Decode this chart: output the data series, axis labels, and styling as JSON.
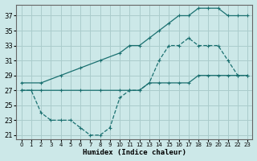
{
  "xlabel": "Humidex (Indice chaleur)",
  "background_color": "#cce8e8",
  "grid_color": "#aacccc",
  "line_color": "#1a7070",
  "xlim": [
    -0.5,
    23.5
  ],
  "ylim": [
    20.5,
    38.5
  ],
  "xticks": [
    0,
    1,
    2,
    3,
    4,
    5,
    6,
    7,
    8,
    9,
    10,
    11,
    12,
    13,
    14,
    15,
    16,
    17,
    18,
    19,
    20,
    21,
    22,
    23
  ],
  "yticks": [
    21,
    23,
    25,
    27,
    29,
    31,
    33,
    35,
    37
  ],
  "line1_x": [
    0,
    2,
    4,
    6,
    8,
    10,
    11,
    12,
    13,
    14,
    15,
    16,
    17,
    18,
    19,
    20,
    21,
    22,
    23
  ],
  "line1_y": [
    28,
    28,
    29,
    30,
    31,
    32,
    33,
    33,
    34,
    35,
    36,
    37,
    37,
    38,
    38,
    38,
    37,
    37,
    37
  ],
  "line2_x": [
    0,
    2,
    4,
    6,
    8,
    10,
    11,
    12,
    13,
    14,
    15,
    16,
    17,
    18,
    19,
    20,
    21,
    22,
    23
  ],
  "line2_y": [
    27,
    27,
    27,
    27,
    27,
    27,
    27,
    27,
    28,
    28,
    28,
    28,
    28,
    29,
    29,
    29,
    29,
    29,
    29
  ],
  "line3_x": [
    0,
    1,
    2,
    3,
    4,
    5,
    6,
    7,
    8,
    9,
    10,
    11,
    12,
    13,
    14,
    15,
    16,
    17,
    18,
    19,
    20,
    21,
    22,
    23
  ],
  "line3_y": [
    27,
    27,
    24,
    23,
    23,
    23,
    22,
    21,
    21,
    22,
    26,
    27,
    27,
    28,
    31,
    33,
    33,
    34,
    33,
    33,
    33,
    31,
    29,
    29
  ]
}
